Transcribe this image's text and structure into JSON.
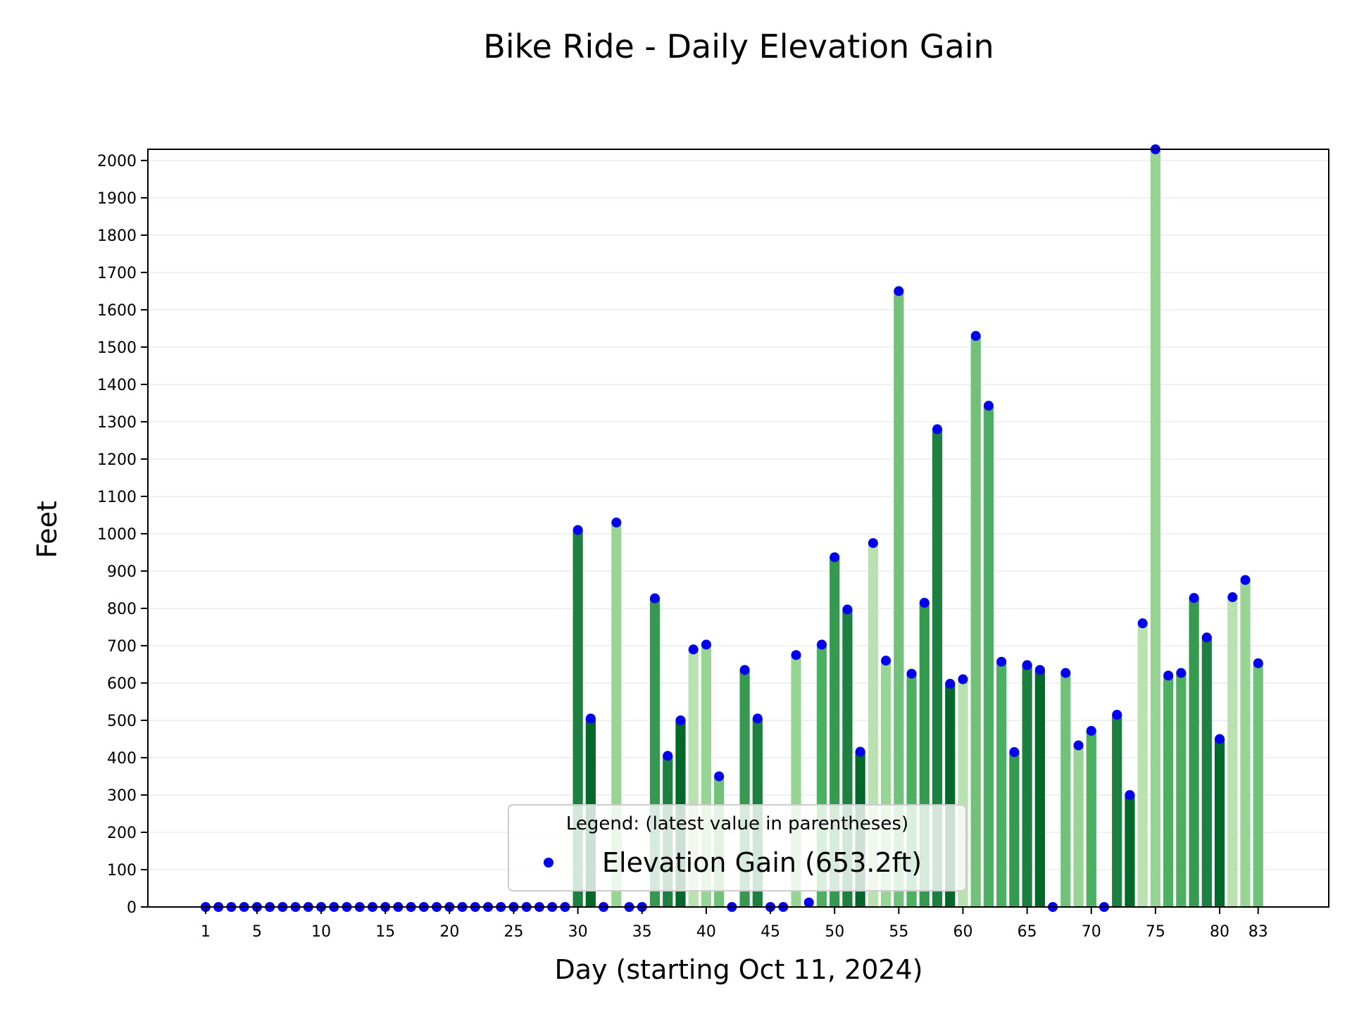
{
  "chart_data": {
    "type": "bar",
    "title": "Bike Ride - Daily Elevation Gain",
    "xlabel": "Day (starting Oct 11, 2024)",
    "ylabel": "Feet",
    "xlim": [
      -3.5,
      88.5
    ],
    "ylim": [
      0,
      2030
    ],
    "yticks": [
      0,
      100,
      200,
      300,
      400,
      500,
      600,
      700,
      800,
      900,
      1000,
      1100,
      1200,
      1300,
      1400,
      1500,
      1600,
      1700,
      1800,
      1900,
      2000
    ],
    "xticks": [
      1,
      5,
      10,
      15,
      20,
      25,
      30,
      35,
      40,
      45,
      50,
      55,
      60,
      65,
      70,
      75,
      80,
      83
    ],
    "grid": "horizontal",
    "legend": {
      "title": "Legend: (latest value in parentheses)",
      "label": "Elevation Gain (653.2ft)",
      "placement": "lower-center"
    },
    "marker_color": "#0000ee",
    "bar_palette": [
      "#00692a",
      "#1e8040",
      "#359a50",
      "#4daf62",
      "#71c17b",
      "#98d493",
      "#b9e2b0"
    ],
    "series": [
      {
        "name": "Elevation Gain",
        "x": [
          1,
          2,
          3,
          4,
          5,
          6,
          7,
          8,
          9,
          10,
          11,
          12,
          13,
          14,
          15,
          16,
          17,
          18,
          19,
          20,
          21,
          22,
          23,
          24,
          25,
          26,
          27,
          28,
          29,
          30,
          31,
          32,
          33,
          34,
          35,
          36,
          37,
          38,
          39,
          40,
          41,
          42,
          43,
          44,
          45,
          46,
          47,
          48,
          49,
          50,
          51,
          52,
          53,
          54,
          55,
          56,
          57,
          58,
          59,
          60,
          61,
          62,
          63,
          64,
          65,
          66,
          67,
          68,
          69,
          70,
          71,
          72,
          73,
          74,
          75,
          76,
          77,
          78,
          79,
          80,
          81,
          82,
          83
        ],
        "values": [
          0,
          0,
          0,
          0,
          0,
          0,
          0,
          0,
          0,
          0,
          0,
          0,
          0,
          0,
          0,
          0,
          0,
          0,
          0,
          0,
          0,
          0,
          0,
          0,
          0,
          0,
          0,
          0,
          0,
          1010,
          505,
          0,
          1030,
          0,
          0,
          827,
          405,
          500,
          690,
          703,
          350,
          0,
          635,
          505,
          0,
          0,
          675,
          12,
          703,
          937,
          797,
          416,
          975,
          660,
          1650,
          625,
          815,
          1280,
          598,
          610,
          1530,
          1343,
          657,
          415,
          648,
          635,
          0,
          627,
          433,
          472,
          0,
          515,
          300,
          760,
          2030,
          620,
          627,
          828,
          722,
          450,
          830,
          876,
          653
        ],
        "colors": [
          6,
          6,
          6,
          6,
          6,
          6,
          6,
          6,
          6,
          6,
          6,
          6,
          6,
          6,
          6,
          6,
          6,
          6,
          6,
          6,
          6,
          6,
          6,
          6,
          6,
          6,
          6,
          6,
          6,
          1,
          0,
          6,
          5,
          6,
          6,
          2,
          1,
          0,
          6,
          5,
          4,
          6,
          2,
          1,
          6,
          6,
          5,
          6,
          3,
          2,
          1,
          0,
          6,
          5,
          4,
          3,
          2,
          1,
          0,
          6,
          4,
          3,
          3,
          2,
          1,
          0,
          6,
          4,
          5,
          3,
          6,
          1,
          0,
          6,
          5,
          3,
          3,
          2,
          1,
          0,
          6,
          5,
          4
        ]
      }
    ]
  }
}
